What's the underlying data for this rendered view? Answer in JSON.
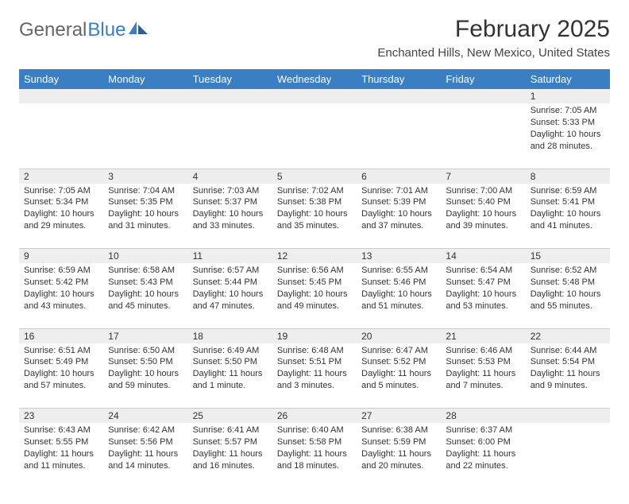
{
  "logo": {
    "prefix": "General",
    "suffix": "Blue"
  },
  "title": "February 2025",
  "subtitle": "Enchanted Hills, New Mexico, United States",
  "colors": {
    "header_bg": "#3a7fc4",
    "header_fg": "#ffffff",
    "daynum_bg": "#eeeeee",
    "rule": "#cccccc",
    "text": "#333333"
  },
  "weekdays": [
    "Sunday",
    "Monday",
    "Tuesday",
    "Wednesday",
    "Thursday",
    "Friday",
    "Saturday"
  ],
  "weeks": [
    [
      null,
      null,
      null,
      null,
      null,
      null,
      {
        "n": "1",
        "sunrise": "Sunrise: 7:05 AM",
        "sunset": "Sunset: 5:33 PM",
        "daylight": "Daylight: 10 hours and 28 minutes."
      }
    ],
    [
      {
        "n": "2",
        "sunrise": "Sunrise: 7:05 AM",
        "sunset": "Sunset: 5:34 PM",
        "daylight": "Daylight: 10 hours and 29 minutes."
      },
      {
        "n": "3",
        "sunrise": "Sunrise: 7:04 AM",
        "sunset": "Sunset: 5:35 PM",
        "daylight": "Daylight: 10 hours and 31 minutes."
      },
      {
        "n": "4",
        "sunrise": "Sunrise: 7:03 AM",
        "sunset": "Sunset: 5:37 PM",
        "daylight": "Daylight: 10 hours and 33 minutes."
      },
      {
        "n": "5",
        "sunrise": "Sunrise: 7:02 AM",
        "sunset": "Sunset: 5:38 PM",
        "daylight": "Daylight: 10 hours and 35 minutes."
      },
      {
        "n": "6",
        "sunrise": "Sunrise: 7:01 AM",
        "sunset": "Sunset: 5:39 PM",
        "daylight": "Daylight: 10 hours and 37 minutes."
      },
      {
        "n": "7",
        "sunrise": "Sunrise: 7:00 AM",
        "sunset": "Sunset: 5:40 PM",
        "daylight": "Daylight: 10 hours and 39 minutes."
      },
      {
        "n": "8",
        "sunrise": "Sunrise: 6:59 AM",
        "sunset": "Sunset: 5:41 PM",
        "daylight": "Daylight: 10 hours and 41 minutes."
      }
    ],
    [
      {
        "n": "9",
        "sunrise": "Sunrise: 6:59 AM",
        "sunset": "Sunset: 5:42 PM",
        "daylight": "Daylight: 10 hours and 43 minutes."
      },
      {
        "n": "10",
        "sunrise": "Sunrise: 6:58 AM",
        "sunset": "Sunset: 5:43 PM",
        "daylight": "Daylight: 10 hours and 45 minutes."
      },
      {
        "n": "11",
        "sunrise": "Sunrise: 6:57 AM",
        "sunset": "Sunset: 5:44 PM",
        "daylight": "Daylight: 10 hours and 47 minutes."
      },
      {
        "n": "12",
        "sunrise": "Sunrise: 6:56 AM",
        "sunset": "Sunset: 5:45 PM",
        "daylight": "Daylight: 10 hours and 49 minutes."
      },
      {
        "n": "13",
        "sunrise": "Sunrise: 6:55 AM",
        "sunset": "Sunset: 5:46 PM",
        "daylight": "Daylight: 10 hours and 51 minutes."
      },
      {
        "n": "14",
        "sunrise": "Sunrise: 6:54 AM",
        "sunset": "Sunset: 5:47 PM",
        "daylight": "Daylight: 10 hours and 53 minutes."
      },
      {
        "n": "15",
        "sunrise": "Sunrise: 6:52 AM",
        "sunset": "Sunset: 5:48 PM",
        "daylight": "Daylight: 10 hours and 55 minutes."
      }
    ],
    [
      {
        "n": "16",
        "sunrise": "Sunrise: 6:51 AM",
        "sunset": "Sunset: 5:49 PM",
        "daylight": "Daylight: 10 hours and 57 minutes."
      },
      {
        "n": "17",
        "sunrise": "Sunrise: 6:50 AM",
        "sunset": "Sunset: 5:50 PM",
        "daylight": "Daylight: 10 hours and 59 minutes."
      },
      {
        "n": "18",
        "sunrise": "Sunrise: 6:49 AM",
        "sunset": "Sunset: 5:50 PM",
        "daylight": "Daylight: 11 hours and 1 minute."
      },
      {
        "n": "19",
        "sunrise": "Sunrise: 6:48 AM",
        "sunset": "Sunset: 5:51 PM",
        "daylight": "Daylight: 11 hours and 3 minutes."
      },
      {
        "n": "20",
        "sunrise": "Sunrise: 6:47 AM",
        "sunset": "Sunset: 5:52 PM",
        "daylight": "Daylight: 11 hours and 5 minutes."
      },
      {
        "n": "21",
        "sunrise": "Sunrise: 6:46 AM",
        "sunset": "Sunset: 5:53 PM",
        "daylight": "Daylight: 11 hours and 7 minutes."
      },
      {
        "n": "22",
        "sunrise": "Sunrise: 6:44 AM",
        "sunset": "Sunset: 5:54 PM",
        "daylight": "Daylight: 11 hours and 9 minutes."
      }
    ],
    [
      {
        "n": "23",
        "sunrise": "Sunrise: 6:43 AM",
        "sunset": "Sunset: 5:55 PM",
        "daylight": "Daylight: 11 hours and 11 minutes."
      },
      {
        "n": "24",
        "sunrise": "Sunrise: 6:42 AM",
        "sunset": "Sunset: 5:56 PM",
        "daylight": "Daylight: 11 hours and 14 minutes."
      },
      {
        "n": "25",
        "sunrise": "Sunrise: 6:41 AM",
        "sunset": "Sunset: 5:57 PM",
        "daylight": "Daylight: 11 hours and 16 minutes."
      },
      {
        "n": "26",
        "sunrise": "Sunrise: 6:40 AM",
        "sunset": "Sunset: 5:58 PM",
        "daylight": "Daylight: 11 hours and 18 minutes."
      },
      {
        "n": "27",
        "sunrise": "Sunrise: 6:38 AM",
        "sunset": "Sunset: 5:59 PM",
        "daylight": "Daylight: 11 hours and 20 minutes."
      },
      {
        "n": "28",
        "sunrise": "Sunrise: 6:37 AM",
        "sunset": "Sunset: 6:00 PM",
        "daylight": "Daylight: 11 hours and 22 minutes."
      },
      null
    ]
  ]
}
